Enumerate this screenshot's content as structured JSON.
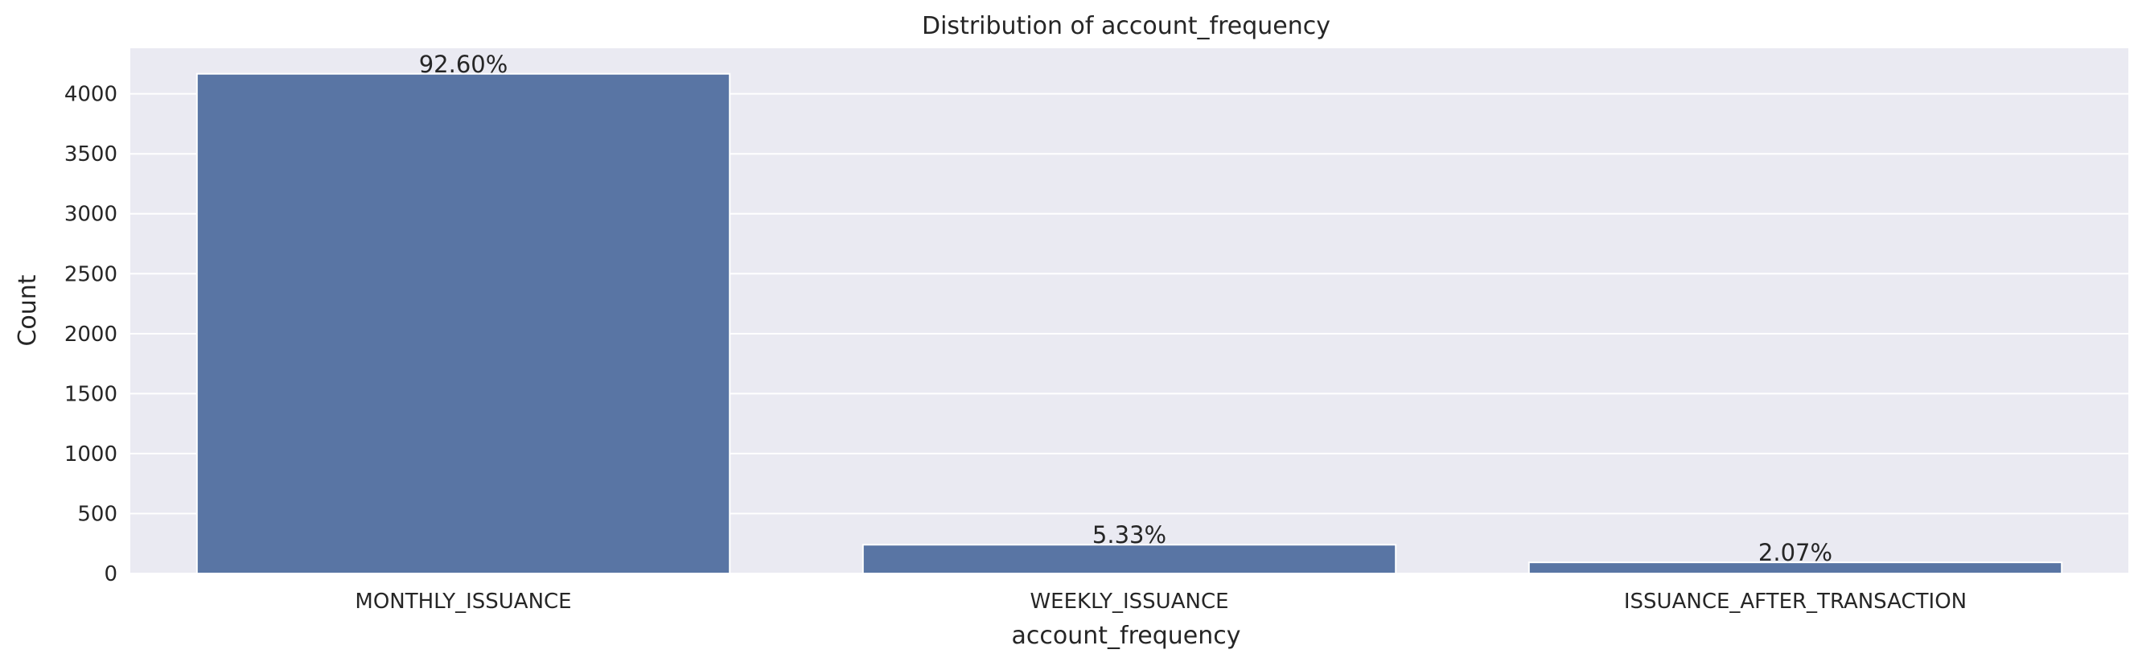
{
  "chart_data": {
    "type": "bar",
    "title": "Distribution of account_frequency",
    "xlabel": "account_frequency",
    "ylabel": "Count",
    "categories": [
      "MONTHLY_ISSUANCE",
      "WEEKLY_ISSUANCE",
      "ISSUANCE_AFTER_TRANSACTION"
    ],
    "values": [
      4167,
      240,
      93
    ],
    "data_labels": [
      "92.60%",
      "5.33%",
      "2.07%"
    ],
    "ylim": [
      0,
      4380
    ],
    "yticks": [
      0,
      500,
      1000,
      1500,
      2000,
      2500,
      3000,
      3500,
      4000
    ],
    "grid": true,
    "legend": "none",
    "colors": {
      "bar": "#5975a4",
      "plot_background": "#eaeaf2",
      "grid": "#ffffff",
      "text": "#262626"
    }
  }
}
